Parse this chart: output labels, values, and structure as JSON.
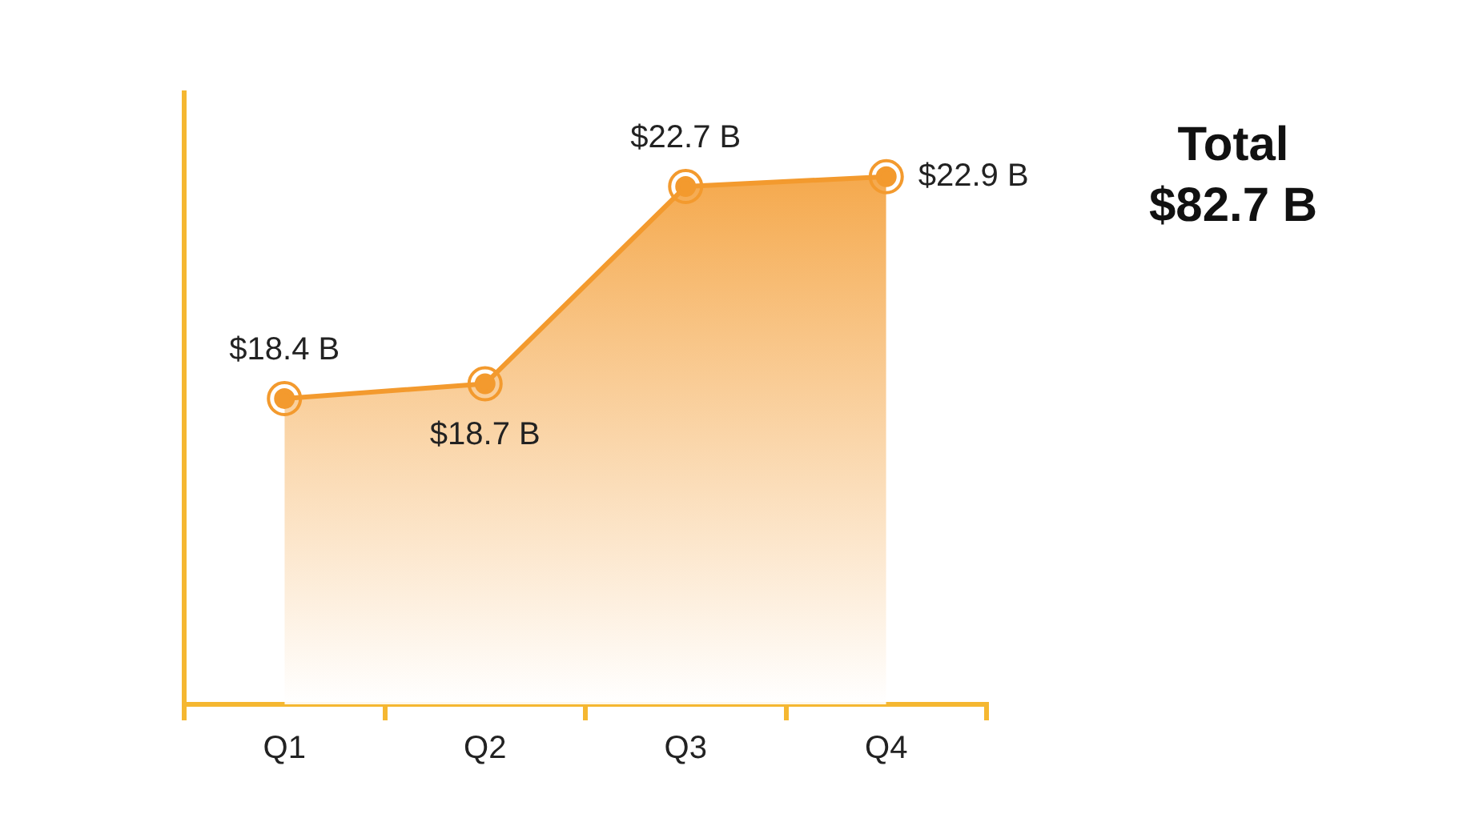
{
  "chart_data": {
    "type": "area",
    "categories": [
      "Q1",
      "Q2",
      "Q3",
      "Q4"
    ],
    "series": [
      {
        "color": "#f39a2e",
        "values": [
          18.4,
          18.7,
          22.7,
          22.9
        ],
        "value_labels": [
          "$18.4 B",
          "$18.7 B",
          "$22.7 B",
          "$22.9 B"
        ]
      }
    ],
    "ylim": [
      12.2,
      24.6
    ],
    "tick_labels": "x",
    "marker": "circle",
    "annotations": [
      "Total\n$82.7 B"
    ]
  }
}
